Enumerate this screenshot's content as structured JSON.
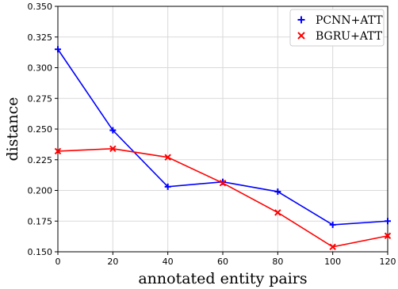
{
  "chart_data": {
    "type": "line",
    "title": "",
    "xlabel": "annotated entity pairs",
    "ylabel": "distance",
    "xlim": [
      0,
      120
    ],
    "ylim": [
      0.15,
      0.35
    ],
    "xticks": [
      0,
      20,
      40,
      60,
      80,
      100,
      120
    ],
    "yticks": [
      0.15,
      0.175,
      0.2,
      0.225,
      0.25,
      0.275,
      0.3,
      0.325,
      0.35
    ],
    "xtick_labels": [
      "0",
      "20",
      "40",
      "60",
      "80",
      "100",
      "120"
    ],
    "ytick_labels": [
      "0.150",
      "0.175",
      "0.200",
      "0.225",
      "0.250",
      "0.275",
      "0.300",
      "0.325",
      "0.350"
    ],
    "grid": true,
    "legend_position": "top-right",
    "series": [
      {
        "name": "PCNN+ATT",
        "color": "#0000ff",
        "marker": "plus",
        "x": [
          0,
          20,
          40,
          60,
          80,
          100,
          120
        ],
        "y": [
          0.315,
          0.249,
          0.203,
          0.207,
          0.199,
          0.172,
          0.175
        ]
      },
      {
        "name": "BGRU+ATT",
        "color": "#ff0000",
        "marker": "x",
        "x": [
          0,
          20,
          40,
          60,
          80,
          100,
          120
        ],
        "y": [
          0.232,
          0.234,
          0.227,
          0.206,
          0.182,
          0.154,
          0.163
        ]
      }
    ]
  }
}
